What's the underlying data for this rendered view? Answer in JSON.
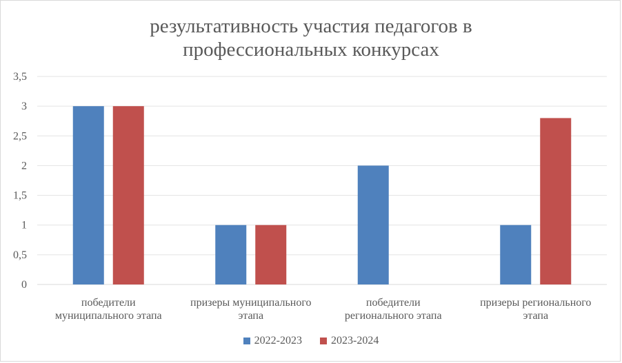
{
  "chart_data": {
    "type": "bar",
    "title": "результативность  участия  педагогов в\nпрофессиональных  конкурсах",
    "categories": [
      "победители\nмуниципального этапа",
      "призеры муниципального\nэтапа",
      "победители\nрегионального этапа",
      "призеры регионального\nэтапа"
    ],
    "series": [
      {
        "name": "2022-2023",
        "color": "#4f81bd",
        "values": [
          3,
          1,
          2,
          1
        ]
      },
      {
        "name": "2023-2024",
        "color": "#c0504d",
        "values": [
          3,
          1,
          0,
          2.8
        ]
      }
    ],
    "yticks": [
      "0",
      "0,5",
      "1",
      "1,5",
      "2",
      "2,5",
      "3",
      "3,5"
    ],
    "ylim": [
      0,
      3.5
    ],
    "grid": true,
    "legend_position": "bottom"
  }
}
